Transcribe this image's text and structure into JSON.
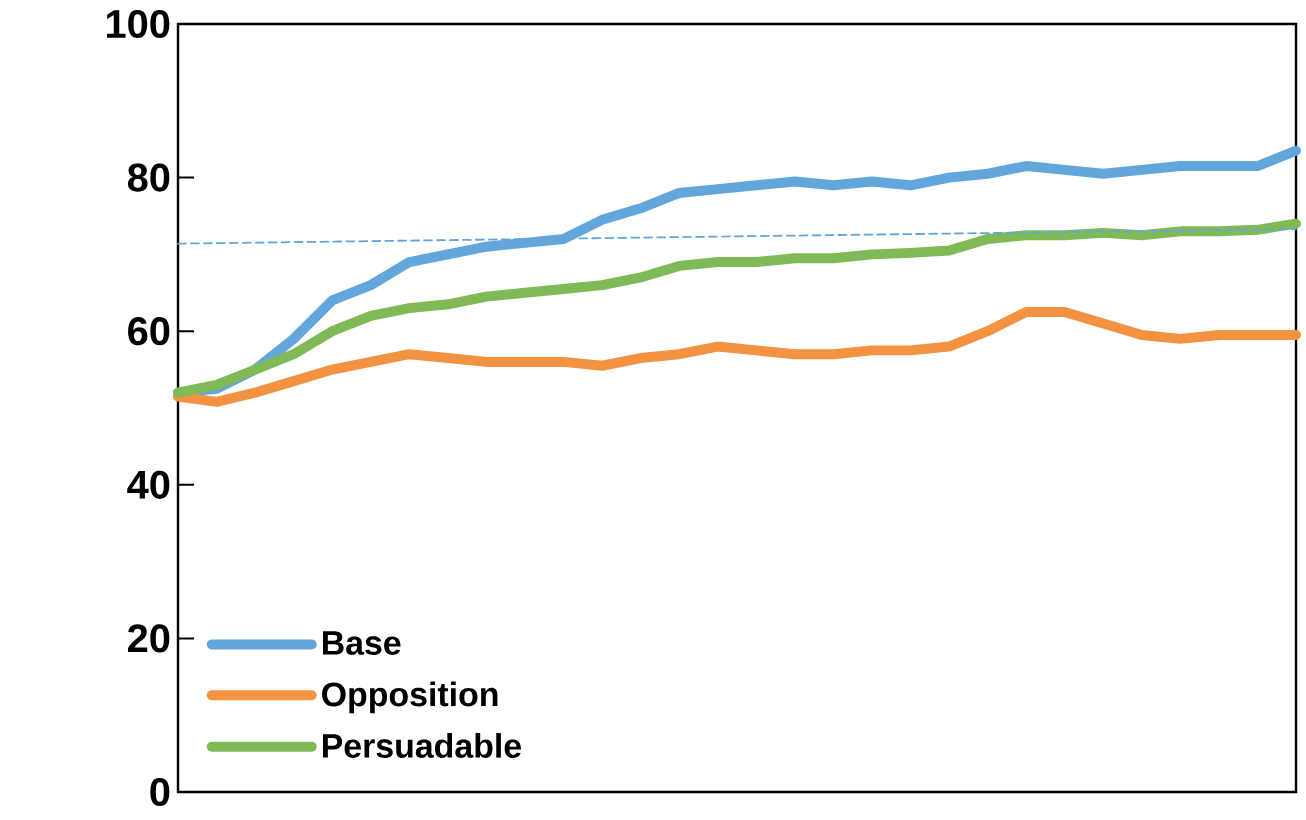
{
  "chart_data": {
    "type": "line",
    "categories": [
      null,
      null,
      null,
      null,
      null,
      null,
      null,
      null,
      null,
      null,
      null,
      null,
      null,
      null,
      null,
      null,
      null,
      null,
      null,
      null,
      null,
      null,
      null,
      null,
      null,
      null,
      null,
      null,
      null,
      null
    ],
    "ylim": [
      0,
      100
    ],
    "yticks": [
      0,
      20,
      40,
      60,
      80,
      100
    ],
    "legend": "bottom left",
    "tick_labels": "y",
    "series": [
      {
        "name": "Base",
        "color": "#63a6dc",
        "values": [
          52,
          52.5,
          55,
          59,
          64,
          66,
          69,
          70,
          71,
          71.5,
          72,
          74.5,
          76,
          78,
          78.5,
          79,
          79.5,
          79,
          79.5,
          79,
          80,
          80.5,
          81.5,
          81,
          80.5,
          81,
          81.5,
          81.5,
          81.5,
          83.5
        ]
      },
      {
        "name": "Opposition",
        "color": "#f39240",
        "values": [
          51.5,
          50.8,
          52,
          53.5,
          55,
          56,
          57,
          56.5,
          56,
          56,
          56,
          55.5,
          56.5,
          57,
          58,
          57.5,
          57,
          57,
          57.5,
          57.5,
          58,
          60,
          62.5,
          62.5,
          61,
          59.5,
          59,
          59.5,
          59.5,
          59.5
        ]
      },
      {
        "name": "Persuadable",
        "color": "#7fba57",
        "values": [
          52,
          53,
          55,
          57,
          60,
          62,
          63,
          63.5,
          64.5,
          65,
          65.5,
          66,
          67,
          68.5,
          69,
          69,
          69.5,
          69.5,
          70,
          70.2,
          70.5,
          72,
          72.5,
          72.5,
          72.8,
          72.5,
          73,
          73,
          73.2,
          74
        ]
      },
      {
        "type": "line",
        "color": "#63a6dc",
        "line_style": "dashed",
        "values": [
          71.4,
          null,
          null,
          null,
          null,
          null,
          null,
          null,
          null,
          null,
          null,
          null,
          null,
          null,
          null,
          null,
          null,
          null,
          null,
          null,
          null,
          null,
          null,
          null,
          null,
          null,
          null,
          null,
          null,
          73.3
        ]
      }
    ]
  }
}
